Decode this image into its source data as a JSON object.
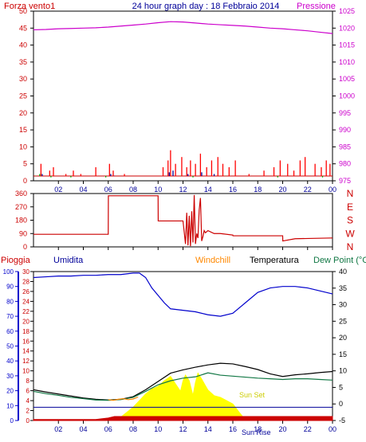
{
  "chart_data": [
    {
      "type": "line",
      "title": "24 hour graph day : 18 Febbraio 2014",
      "left_axis_label": "Forza vento1",
      "right_axis_label": "Pressione",
      "x_ticks": [
        "02",
        "04",
        "06",
        "08",
        "10",
        "12",
        "14",
        "16",
        "18",
        "20",
        "22",
        "00"
      ],
      "left_ticks": [
        0,
        5,
        10,
        15,
        20,
        25,
        30,
        35,
        40,
        45,
        50
      ],
      "right_ticks": [
        975,
        980,
        985,
        990,
        995,
        1000,
        1005,
        1010,
        1015,
        1020,
        1025
      ],
      "left_ylim": [
        0,
        50
      ],
      "right_ylim": [
        975,
        1025
      ],
      "xlim": [
        0,
        24
      ],
      "series": [
        {
          "name": "Pressione",
          "axis": "right",
          "color": "#cc00cc",
          "x": [
            0,
            1,
            2,
            3,
            4,
            5,
            6,
            7,
            8,
            9,
            10,
            11,
            12,
            13,
            14,
            15,
            16,
            17,
            18,
            19,
            20,
            21,
            22,
            23,
            24
          ],
          "values": [
            1019.5,
            1019.6,
            1019.8,
            1019.9,
            1020.0,
            1020.1,
            1020.3,
            1020.6,
            1020.9,
            1021.2,
            1021.6,
            1021.9,
            1021.8,
            1021.5,
            1021.2,
            1021.0,
            1020.8,
            1020.6,
            1020.3,
            1020.0,
            1019.8,
            1019.5,
            1019.2,
            1018.8,
            1018.4
          ]
        },
        {
          "name": "Forza vento1",
          "axis": "left",
          "color": "#ff0000",
          "style": "bars",
          "x": [
            0.6,
            1.3,
            1.6,
            2.6,
            3.2,
            3.8,
            5.0,
            6.1,
            6.4,
            7.3,
            10.4,
            10.8,
            11.0,
            11.4,
            11.9,
            12.3,
            12.6,
            13.0,
            13.4,
            13.9,
            14.3,
            14.8,
            15.2,
            15.7,
            16.2,
            17.3,
            18.5,
            19.3,
            19.8,
            20.4,
            20.9,
            21.4,
            21.8,
            22.6,
            23.1,
            23.5,
            23.8
          ],
          "values": [
            5,
            3,
            4,
            2,
            3,
            2,
            4,
            5,
            3,
            2,
            4,
            6,
            9,
            5,
            7,
            4,
            6,
            5,
            8,
            4,
            6,
            7,
            5,
            4,
            6,
            2,
            3,
            4,
            6,
            5,
            3,
            6,
            7,
            5,
            4,
            6,
            5
          ]
        },
        {
          "name": "",
          "axis": "left",
          "color": "#000099",
          "style": "bars",
          "x": [
            0.7,
            6.2,
            6.5,
            10.9,
            11.2,
            12.4,
            13.5,
            14.5,
            22.7
          ],
          "values": [
            2,
            2,
            1.5,
            2.5,
            3,
            2,
            2.5,
            2,
            1.5
          ]
        },
        {
          "name": "",
          "axis": "left",
          "color": "#00aa00",
          "style": "bars",
          "x": [
            0.2,
            0.5,
            1.4,
            3.0,
            5.8,
            11.8,
            12.8,
            15.4,
            19.6,
            23.2
          ],
          "values": [
            1.5,
            2,
            1,
            1,
            1,
            1.5,
            1,
            1.5,
            1,
            1
          ]
        }
      ]
    },
    {
      "type": "line",
      "left_ticks": [
        0,
        90,
        180,
        270,
        360
      ],
      "right_labels": [
        "N",
        "W",
        "S",
        "E",
        "N"
      ],
      "ylim": [
        0,
        360
      ],
      "xlim": [
        0,
        24
      ],
      "series": [
        {
          "name": "",
          "color": "#cc0000",
          "x": [
            0,
            6,
            6.01,
            10,
            10.01,
            12,
            12.2,
            12.3,
            12.4,
            12.5,
            12.6,
            12.7,
            12.8,
            12.9,
            13.0,
            13.1,
            13.2,
            13.3,
            13.4,
            13.5,
            13.6,
            13.7,
            13.8,
            14,
            14.5,
            15,
            16,
            16.01,
            20,
            20.01,
            21,
            24
          ],
          "values": [
            85,
            85,
            345,
            345,
            175,
            175,
            20,
            230,
            10,
            210,
            5,
            240,
            30,
            350,
            20,
            90,
            60,
            250,
            330,
            40,
            70,
            110,
            95,
            110,
            90,
            90,
            80,
            75,
            75,
            40,
            55,
            60
          ]
        }
      ]
    },
    {
      "type": "line",
      "labels": {
        "pioggia": "Pioggia",
        "umidita": "Umidita",
        "windchill": "Windchill",
        "temperatura": "Temperatura",
        "dewpoint": "Dew Point (°C",
        "sunset": "Sun Set",
        "sunrise": "Sun Rise"
      },
      "pioggia_ticks": [
        0,
        2,
        4,
        6,
        8,
        10,
        12,
        14,
        16,
        18,
        20,
        22,
        24,
        26,
        28,
        30
      ],
      "umidita_ticks": [
        0,
        10,
        20,
        30,
        40,
        50,
        60,
        70,
        80,
        90,
        100
      ],
      "temp_ticks": [
        -5,
        0,
        5,
        10,
        15,
        20,
        25,
        30,
        35,
        40
      ],
      "temp_ylim": [
        -5,
        40
      ],
      "umidita_ylim": [
        0,
        100
      ],
      "xlim": [
        0,
        24
      ],
      "series": [
        {
          "name": "Umidita",
          "axis": "umidita",
          "color": "#0000cc",
          "x": [
            0,
            1,
            2,
            3,
            4,
            5,
            6,
            7,
            8,
            8.5,
            9,
            9.5,
            10,
            10.5,
            11,
            12,
            13,
            14,
            15,
            16,
            17,
            18,
            19,
            20,
            21,
            22,
            23,
            24
          ],
          "values": [
            96,
            96.5,
            97,
            97,
            97.5,
            97.5,
            98,
            98,
            99,
            99,
            96,
            89,
            84,
            79,
            75,
            74,
            73,
            71,
            70,
            72,
            79,
            86,
            89,
            90,
            90,
            89,
            87,
            85
          ]
        },
        {
          "name": "Temperatura",
          "axis": "temp",
          "color": "#000000",
          "x": [
            0,
            1,
            2,
            3,
            4,
            5,
            6,
            7,
            8,
            9,
            10,
            11,
            12,
            13,
            14,
            15,
            16,
            17,
            18,
            19,
            20,
            21,
            22,
            23,
            24
          ],
          "values": [
            4.3,
            3.6,
            3.0,
            2.4,
            1.8,
            1.4,
            1.2,
            1.4,
            2.2,
            4.3,
            6.8,
            9.3,
            10.3,
            11.1,
            11.8,
            12.3,
            12.1,
            11.3,
            10.4,
            9.1,
            8.3,
            8.8,
            9.1,
            9.5,
            9.8
          ]
        },
        {
          "name": "Dew Point (°C",
          "axis": "temp",
          "color": "#117744",
          "x": [
            0,
            1,
            2,
            3,
            4,
            5,
            6,
            7,
            8,
            9,
            10,
            11,
            12,
            13,
            14,
            15,
            16,
            17,
            18,
            19,
            20,
            21,
            22,
            23,
            24
          ],
          "values": [
            3.8,
            3.1,
            2.6,
            2.0,
            1.6,
            1.2,
            1.1,
            1.3,
            2.0,
            3.8,
            5.8,
            7.0,
            7.8,
            8.2,
            9.4,
            8.7,
            8.4,
            8.1,
            7.8,
            7.6,
            7.4,
            7.6,
            7.6,
            7.4,
            7.2
          ]
        },
        {
          "name": "Windchill",
          "axis": "temp",
          "color": "#ff8800",
          "x": [
            6,
            6.4,
            6.8,
            7.2,
            7.6,
            8.0,
            8.4
          ],
          "values": [
            1.3,
            1.1,
            1.4,
            1.6,
            1.3,
            1.5,
            2.1
          ]
        },
        {
          "name": "",
          "axis": "temp",
          "color": "#ffff00",
          "style": "area",
          "x": [
            6.5,
            7.0,
            7.5,
            8.0,
            8.5,
            9.0,
            9.5,
            10,
            10.5,
            11,
            11.5,
            11.8,
            12.0,
            12.2,
            12.5,
            12.8,
            13.0,
            13.2,
            13.5,
            13.8,
            14.0,
            14.5,
            15.0,
            15.5,
            16.0,
            16.5,
            17.0
          ],
          "values": [
            -4.8,
            -4.0,
            -2.5,
            -1.0,
            1.0,
            3.0,
            4.5,
            5.3,
            7.0,
            8.3,
            5.5,
            3.8,
            7.0,
            8.7,
            7.0,
            2.5,
            6.5,
            9.3,
            7.5,
            5.5,
            4.2,
            2.5,
            2.0,
            1.0,
            0.0,
            -2.5,
            -4.8
          ]
        },
        {
          "name": "Pioggia",
          "axis": "pioggia",
          "color": "#cc0000",
          "style": "area",
          "x": [
            0,
            5,
            6,
            6.5,
            24
          ],
          "values": [
            0.2,
            0.2,
            0.5,
            0.8,
            0.8
          ]
        }
      ],
      "reference_line": {
        "axis": "temp",
        "value": -1,
        "color": "#000099"
      }
    }
  ]
}
